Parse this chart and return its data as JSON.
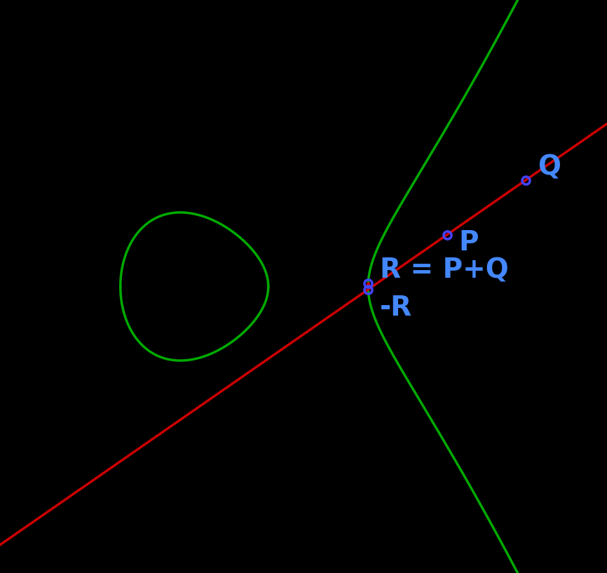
{
  "background_color": "#000000",
  "curve_color": "#00aa00",
  "line_color": "#cc0000",
  "dot_color": "#cc0000",
  "point_color": "#4444ff",
  "label_color": "#4488ff",
  "curve_linewidth": 2.5,
  "line_linewidth": 2.5,
  "point_markersize": 8,
  "figsize": [
    8.66,
    8.17
  ],
  "dpi": 100,
  "xlim": [
    -3.2,
    4.5
  ],
  "ylim": [
    -5.5,
    5.5
  ],
  "ec_a": -2.5,
  "ec_b": 0.5,
  "line_slope": 1.05,
  "line_intercept": -1.6,
  "P_label": "P",
  "Q_label": "Q",
  "R_label": "R = P+Q",
  "negR_label": "-R",
  "label_fontsize": 28
}
